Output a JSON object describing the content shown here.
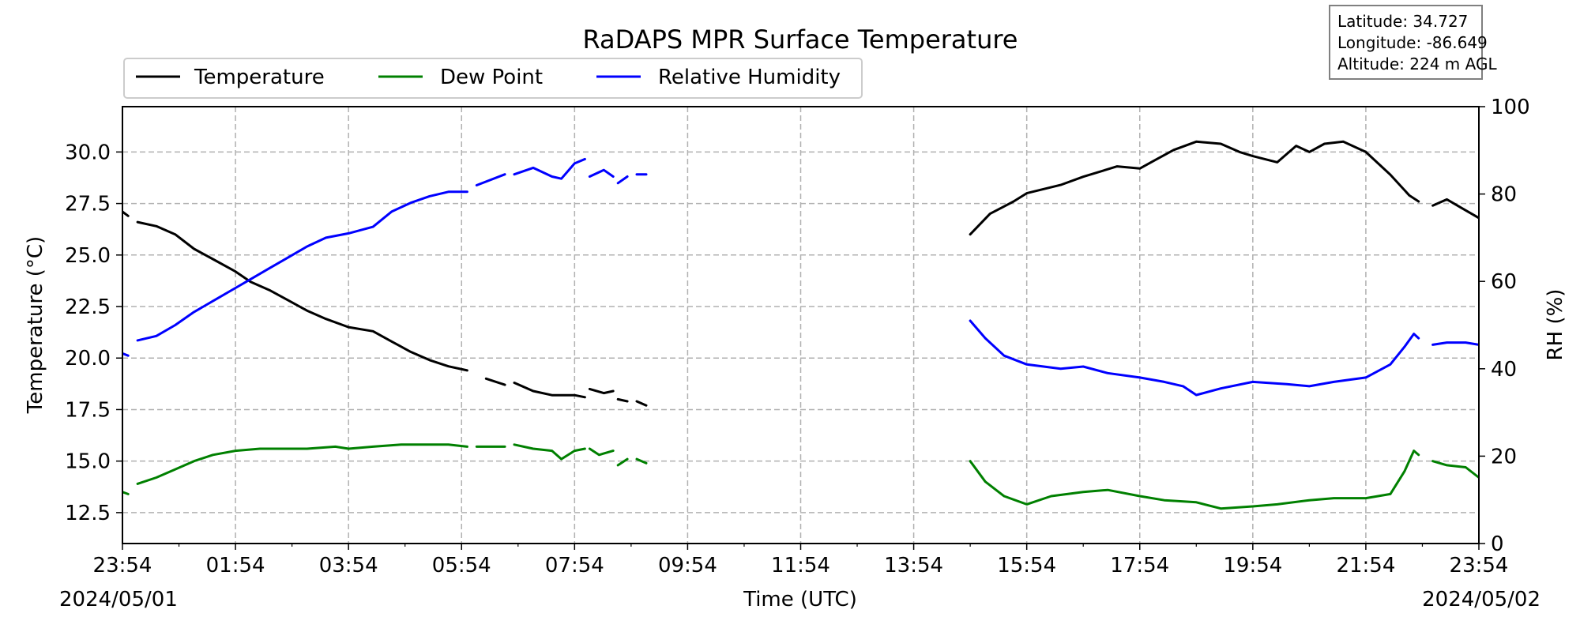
{
  "chart_data": {
    "type": "line",
    "title": "RaDAPS MPR Surface Temperature",
    "xlabel": "Time (UTC)",
    "ylabel_left": "Temperature ($^\\circ$C)",
    "ylabel_left_display": "Temperature (°C)",
    "ylabel_right": "RH (%)",
    "date_start": "2024/05/01",
    "date_end": "2024/05/02",
    "x_range": [
      "2024-05-01T23:54",
      "2024-05-02T23:54"
    ],
    "x_ticks": [
      "23:54",
      "01:54",
      "03:54",
      "05:54",
      "07:54",
      "09:54",
      "11:54",
      "13:54",
      "15:54",
      "17:54",
      "19:54",
      "21:54",
      "23:54"
    ],
    "y_left_range": [
      11.0,
      32.2
    ],
    "y_left_ticks": [
      "12.5",
      "15.0",
      "17.5",
      "20.0",
      "22.5",
      "25.0",
      "27.5",
      "30.0"
    ],
    "y_right_range": [
      0,
      100
    ],
    "y_right_ticks": [
      "0",
      "20",
      "40",
      "60",
      "80",
      "100"
    ],
    "grid": true,
    "legend_position": "top-left, above plot",
    "series": [
      {
        "name": "Temperature",
        "color": "#000000",
        "axis": "left",
        "segments": [
          [
            [
              "23:54",
              27.1
            ],
            [
              "00:00",
              26.9
            ]
          ],
          [
            [
              "00:10",
              26.6
            ],
            [
              "00:30",
              26.4
            ],
            [
              "00:50",
              26.0
            ],
            [
              "01:10",
              25.3
            ],
            [
              "01:30",
              24.8
            ],
            [
              "01:54",
              24.2
            ],
            [
              "02:10",
              23.7
            ],
            [
              "02:30",
              23.3
            ],
            [
              "02:50",
              22.8
            ],
            [
              "03:10",
              22.3
            ],
            [
              "03:30",
              21.9
            ],
            [
              "03:54",
              21.5
            ],
            [
              "04:20",
              21.3
            ],
            [
              "04:40",
              20.8
            ],
            [
              "05:00",
              20.3
            ],
            [
              "05:20",
              19.9
            ],
            [
              "05:40",
              19.6
            ],
            [
              "06:00",
              19.4
            ]
          ],
          [
            [
              "06:20",
              19.0
            ],
            [
              "06:40",
              18.7
            ]
          ],
          [
            [
              "06:50",
              18.8
            ],
            [
              "07:10",
              18.4
            ],
            [
              "07:30",
              18.2
            ],
            [
              "07:54",
              18.2
            ],
            [
              "08:05",
              18.1
            ]
          ],
          [
            [
              "08:10",
              18.5
            ],
            [
              "08:25",
              18.3
            ],
            [
              "08:35",
              18.4
            ]
          ],
          [
            [
              "08:40",
              18.0
            ],
            [
              "08:50",
              17.9
            ]
          ],
          [
            [
              "09:00",
              17.9
            ],
            [
              "09:10",
              17.7
            ]
          ],
          [
            [
              "14:54",
              26.0
            ],
            [
              "15:15",
              27.0
            ],
            [
              "15:40",
              27.6
            ],
            [
              "15:54",
              28.0
            ],
            [
              "16:30",
              28.4
            ],
            [
              "16:54",
              28.8
            ],
            [
              "17:30",
              29.3
            ],
            [
              "17:54",
              29.2
            ],
            [
              "18:10",
              29.6
            ],
            [
              "18:30",
              30.1
            ],
            [
              "18:54",
              30.5
            ],
            [
              "19:20",
              30.4
            ],
            [
              "19:40",
              30.0
            ],
            [
              "19:54",
              29.8
            ],
            [
              "20:20",
              29.5
            ],
            [
              "20:40",
              30.3
            ],
            [
              "20:54",
              30.0
            ],
            [
              "21:10",
              30.4
            ],
            [
              "21:30",
              30.5
            ],
            [
              "21:54",
              30.0
            ],
            [
              "22:20",
              28.9
            ],
            [
              "22:40",
              27.9
            ],
            [
              "22:50",
              27.6
            ]
          ],
          [
            [
              "23:05",
              27.4
            ],
            [
              "23:20",
              27.7
            ],
            [
              "23:35",
              27.3
            ],
            [
              "23:54",
              26.8
            ]
          ]
        ]
      },
      {
        "name": "Dew Point",
        "color": "#008000",
        "axis": "left",
        "segments": [
          [
            [
              "23:54",
              13.5
            ],
            [
              "00:00",
              13.4
            ]
          ],
          [
            [
              "00:10",
              13.9
            ],
            [
              "00:30",
              14.2
            ],
            [
              "00:50",
              14.6
            ],
            [
              "01:10",
              15.0
            ],
            [
              "01:30",
              15.3
            ],
            [
              "01:54",
              15.5
            ],
            [
              "02:20",
              15.6
            ],
            [
              "02:50",
              15.6
            ],
            [
              "03:10",
              15.6
            ],
            [
              "03:40",
              15.7
            ],
            [
              "03:54",
              15.6
            ],
            [
              "04:20",
              15.7
            ],
            [
              "04:50",
              15.8
            ],
            [
              "05:20",
              15.8
            ],
            [
              "05:40",
              15.8
            ],
            [
              "06:00",
              15.7
            ]
          ],
          [
            [
              "06:10",
              15.7
            ],
            [
              "06:40",
              15.7
            ]
          ],
          [
            [
              "06:50",
              15.8
            ],
            [
              "07:10",
              15.6
            ],
            [
              "07:30",
              15.5
            ],
            [
              "07:40",
              15.1
            ],
            [
              "07:54",
              15.5
            ],
            [
              "08:05",
              15.6
            ]
          ],
          [
            [
              "08:10",
              15.6
            ],
            [
              "08:20",
              15.3
            ],
            [
              "08:35",
              15.5
            ]
          ],
          [
            [
              "08:40",
              14.8
            ],
            [
              "08:50",
              15.1
            ]
          ],
          [
            [
              "09:00",
              15.1
            ],
            [
              "09:10",
              14.9
            ]
          ],
          [
            [
              "14:54",
              15.0
            ],
            [
              "15:10",
              14.0
            ],
            [
              "15:30",
              13.3
            ],
            [
              "15:54",
              12.9
            ],
            [
              "16:20",
              13.3
            ],
            [
              "16:54",
              13.5
            ],
            [
              "17:20",
              13.6
            ],
            [
              "17:54",
              13.3
            ],
            [
              "18:20",
              13.1
            ],
            [
              "18:54",
              13.0
            ],
            [
              "19:20",
              12.7
            ],
            [
              "19:54",
              12.8
            ],
            [
              "20:20",
              12.9
            ],
            [
              "20:54",
              13.1
            ],
            [
              "21:20",
              13.2
            ],
            [
              "21:54",
              13.2
            ],
            [
              "22:20",
              13.4
            ],
            [
              "22:35",
              14.5
            ],
            [
              "22:45",
              15.5
            ],
            [
              "22:50",
              15.3
            ]
          ],
          [
            [
              "23:05",
              15.0
            ],
            [
              "23:20",
              14.8
            ],
            [
              "23:40",
              14.7
            ],
            [
              "23:54",
              14.2
            ]
          ]
        ]
      },
      {
        "name": "Relative Humidity",
        "color": "#0000ff",
        "axis": "right",
        "segments": [
          [
            [
              "23:54",
              43.5
            ],
            [
              "00:00",
              43.0
            ]
          ],
          [
            [
              "00:10",
              46.5
            ],
            [
              "00:30",
              47.5
            ],
            [
              "00:50",
              50.0
            ],
            [
              "01:10",
              53.0
            ],
            [
              "01:30",
              55.5
            ],
            [
              "01:54",
              58.5
            ],
            [
              "02:10",
              60.5
            ],
            [
              "02:30",
              63.0
            ],
            [
              "02:50",
              65.5
            ],
            [
              "03:10",
              68.0
            ],
            [
              "03:30",
              70.0
            ],
            [
              "03:54",
              71.0
            ],
            [
              "04:20",
              72.5
            ],
            [
              "04:40",
              76.0
            ],
            [
              "05:00",
              78.0
            ],
            [
              "05:20",
              79.5
            ],
            [
              "05:40",
              80.5
            ],
            [
              "06:00",
              80.5
            ]
          ],
          [
            [
              "06:10",
              82.0
            ],
            [
              "06:40",
              84.5
            ]
          ],
          [
            [
              "06:50",
              84.5
            ],
            [
              "07:10",
              86.0
            ],
            [
              "07:30",
              84.0
            ],
            [
              "07:40",
              83.5
            ],
            [
              "07:54",
              87.0
            ],
            [
              "08:05",
              88.0
            ]
          ],
          [
            [
              "08:10",
              84.0
            ],
            [
              "08:25",
              85.5
            ],
            [
              "08:35",
              84.0
            ]
          ],
          [
            [
              "08:40",
              82.5
            ],
            [
              "08:50",
              84.0
            ]
          ],
          [
            [
              "09:00",
              84.5
            ],
            [
              "09:10",
              84.5
            ]
          ],
          [
            [
              "14:54",
              51.0
            ],
            [
              "15:10",
              47.0
            ],
            [
              "15:30",
              43.0
            ],
            [
              "15:54",
              41.0
            ],
            [
              "16:30",
              40.0
            ],
            [
              "16:54",
              40.5
            ],
            [
              "17:20",
              39.0
            ],
            [
              "17:54",
              38.0
            ],
            [
              "18:20",
              37.0
            ],
            [
              "18:40",
              36.0
            ],
            [
              "18:54",
              34.0
            ],
            [
              "19:20",
              35.5
            ],
            [
              "19:54",
              37.0
            ],
            [
              "20:30",
              36.5
            ],
            [
              "20:54",
              36.0
            ],
            [
              "21:20",
              37.0
            ],
            [
              "21:54",
              38.0
            ],
            [
              "22:20",
              41.0
            ],
            [
              "22:35",
              45.0
            ],
            [
              "22:45",
              48.0
            ],
            [
              "22:50",
              47.0
            ]
          ],
          [
            [
              "23:05",
              45.5
            ],
            [
              "23:20",
              46.0
            ],
            [
              "23:40",
              46.0
            ],
            [
              "23:54",
              45.5
            ]
          ]
        ]
      }
    ]
  },
  "info_box": {
    "latitude": "Latitude: 34.727",
    "longitude": "Longitude: -86.649",
    "altitude": "Altitude: 224 m AGL"
  }
}
